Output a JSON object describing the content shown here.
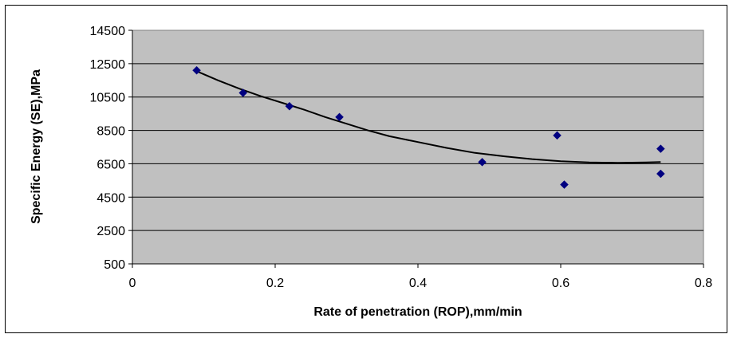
{
  "chart_data": {
    "type": "scatter",
    "title": "",
    "xlabel": "Rate of penetration (ROP),mm/min",
    "ylabel": "Specific Energy (SE),MPa",
    "xlim": [
      0,
      0.8
    ],
    "ylim": [
      500,
      14500
    ],
    "x_ticks": [
      0,
      0.2,
      0.4,
      0.6,
      0.8
    ],
    "x_tick_labels": [
      "0",
      "0.2",
      "0.4",
      "0.6",
      "0.8"
    ],
    "y_ticks": [
      500,
      2500,
      4500,
      6500,
      8500,
      10500,
      12500,
      14500
    ],
    "y_tick_labels": [
      "500",
      "2500",
      "4500",
      "6500",
      "8500",
      "10500",
      "12500",
      "14500"
    ],
    "grid": "horizontal",
    "legend": "none",
    "plot_background": "#c0c0c0",
    "marker_color": "#000080",
    "line_color": "#000000",
    "series": [
      {
        "type": "scatter",
        "x": [
          0.09,
          0.155,
          0.22,
          0.29,
          0.49,
          0.595,
          0.605,
          0.74,
          0.74
        ],
        "y": [
          12100,
          10750,
          9950,
          9300,
          6600,
          8200,
          5250,
          7400,
          5900
        ]
      },
      {
        "type": "line",
        "x": [
          0.09,
          0.12,
          0.15,
          0.18,
          0.21,
          0.24,
          0.27,
          0.3,
          0.33,
          0.36,
          0.4,
          0.44,
          0.48,
          0.52,
          0.56,
          0.6,
          0.64,
          0.68,
          0.72,
          0.74
        ],
        "y": [
          12050,
          11500,
          11000,
          10550,
          10150,
          9750,
          9300,
          8900,
          8500,
          8150,
          7800,
          7450,
          7150,
          6950,
          6780,
          6650,
          6580,
          6560,
          6580,
          6600
        ]
      }
    ]
  }
}
